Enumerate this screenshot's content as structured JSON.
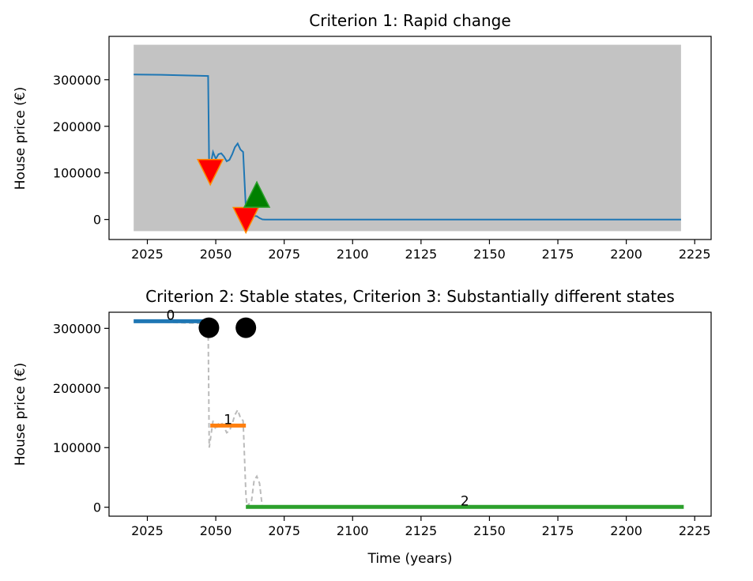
{
  "chart_data": [
    {
      "type": "line",
      "title": "Criterion 1: Rapid change",
      "xlabel": "",
      "ylabel": "House price (€)",
      "xlim": [
        2011,
        2231
      ],
      "ylim": [
        -43000,
        393000
      ],
      "xticks": [
        2025,
        2050,
        2075,
        2100,
        2125,
        2150,
        2175,
        2200,
        2225
      ],
      "yticks": [
        0,
        100000,
        200000,
        300000
      ],
      "ytick_labels": [
        "0",
        "100000",
        "200000",
        "300000"
      ],
      "grid": false,
      "shaded_region": {
        "x": [
          2020,
          2220
        ],
        "y": [
          -25000,
          375000
        ],
        "color": "#c0c0c0"
      },
      "series": [
        {
          "color": "#1f77b4",
          "x": [
            2020,
            2030,
            2040,
            2047.2,
            2047.6,
            2049,
            2050,
            2051,
            2052,
            2053,
            2054,
            2055,
            2056,
            2057,
            2058,
            2059,
            2060,
            2061,
            2061.4,
            2062,
            2063,
            2064,
            2065,
            2066,
            2067,
            2068,
            2100,
            2150,
            2200,
            2220
          ],
          "y": [
            311000,
            310500,
            309000,
            308000,
            100000,
            145000,
            130000,
            140000,
            142000,
            135000,
            125000,
            128000,
            140000,
            155000,
            163000,
            150000,
            145000,
            22000,
            1000,
            5000,
            8000,
            7500,
            7000,
            3000,
            300,
            0,
            0,
            0,
            0,
            0
          ]
        }
      ],
      "markers": [
        {
          "type": "down-triangle",
          "x": 2048,
          "y": 105000,
          "color": "#ff0000",
          "edge": "#ff8c00"
        },
        {
          "type": "down-triangle",
          "x": 2061,
          "y": 2000,
          "color": "#ff0000",
          "edge": "#ff8c00"
        },
        {
          "type": "up-triangle",
          "x": 2065,
          "y": 50000,
          "color": "#008000",
          "edge": "#2ca02c"
        }
      ]
    },
    {
      "type": "line",
      "title": "Criterion 2: Stable states, Criterion 3: Substantially different states",
      "xlabel": "Time (years)",
      "ylabel": "House price (€)",
      "xlim": [
        2011,
        2231
      ],
      "ylim": [
        -15000,
        327000
      ],
      "xticks": [
        2025,
        2050,
        2075,
        2100,
        2125,
        2150,
        2175,
        2200,
        2225
      ],
      "yticks": [
        0,
        100000,
        200000,
        300000
      ],
      "ytick_labels": [
        "0",
        "100000",
        "200000",
        "300000"
      ],
      "grid": false,
      "reference_series": {
        "color": "#bbbbbb",
        "x": [
          2020,
          2030,
          2040,
          2047.2,
          2047.6,
          2049,
          2050,
          2051,
          2052,
          2053,
          2054,
          2055,
          2056,
          2057,
          2058,
          2059,
          2060,
          2061,
          2061.4,
          2062,
          2063,
          2064,
          2065,
          2066,
          2067,
          2068,
          2100,
          2150,
          2200,
          2220
        ],
        "y": [
          311000,
          310500,
          309000,
          308000,
          100000,
          145000,
          130000,
          140000,
          142000,
          135000,
          125000,
          128000,
          140000,
          155000,
          163000,
          150000,
          145000,
          22000,
          1000,
          5000,
          8000,
          45000,
          52000,
          40000,
          300,
          0,
          0,
          0,
          0,
          0
        ]
      },
      "segments": [
        {
          "label": "0",
          "x": [
            2020,
            2047
          ],
          "y": 312000,
          "color": "#1f77b4"
        },
        {
          "label": "1",
          "x": [
            2048,
            2061
          ],
          "y": 137000,
          "color": "#ff7f0e"
        },
        {
          "label": "2",
          "x": [
            2061,
            2221
          ],
          "y": 500,
          "color": "#2ca02c"
        }
      ],
      "markers": [
        {
          "type": "circle",
          "x": 2047.5,
          "y": 301000,
          "color": "#000000"
        },
        {
          "type": "circle",
          "x": 2061,
          "y": 301000,
          "color": "#000000"
        }
      ]
    }
  ]
}
